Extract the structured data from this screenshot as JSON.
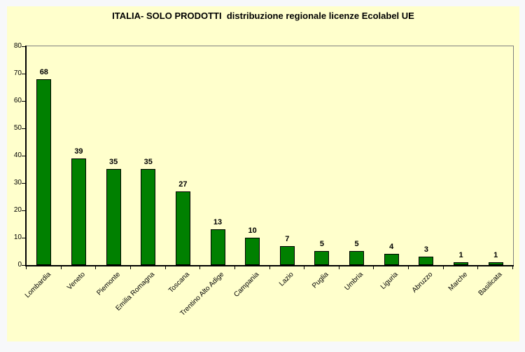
{
  "title": "ITALIA- SOLO PRODOTTI  distribuzione regionale licenze Ecolabel UE",
  "colors": {
    "page_background": "#f7f8fa",
    "chart_background": "#ffffcc",
    "bar_fill": "#008000",
    "bar_border": "#000000",
    "axis": "#000000",
    "plot_border": "#808080",
    "text": "#000000"
  },
  "chart_data": {
    "type": "bar",
    "title": "ITALIA- SOLO PRODOTTI  distribuzione regionale licenze Ecolabel UE",
    "categories": [
      "Lombardia",
      "Veneto",
      "Piemonte",
      "Emilia Romagna",
      "Toscana",
      "Trentino Alto Adige",
      "Campania",
      "Lazio",
      "Puglia",
      "Umbria",
      "Liguria",
      "Abruzzo",
      "Marche",
      "Basilicata"
    ],
    "values": [
      68,
      39,
      35,
      35,
      27,
      13,
      10,
      7,
      5,
      5,
      4,
      3,
      1,
      1
    ],
    "xlabel": "",
    "ylabel": "",
    "ylim": [
      0,
      80
    ],
    "yticks": [
      0,
      10,
      20,
      30,
      40,
      50,
      60,
      70,
      80
    ],
    "grid": false,
    "legend": "none",
    "data_labels": true,
    "bar_label_position": "above",
    "x_label_rotation_deg": 45
  }
}
